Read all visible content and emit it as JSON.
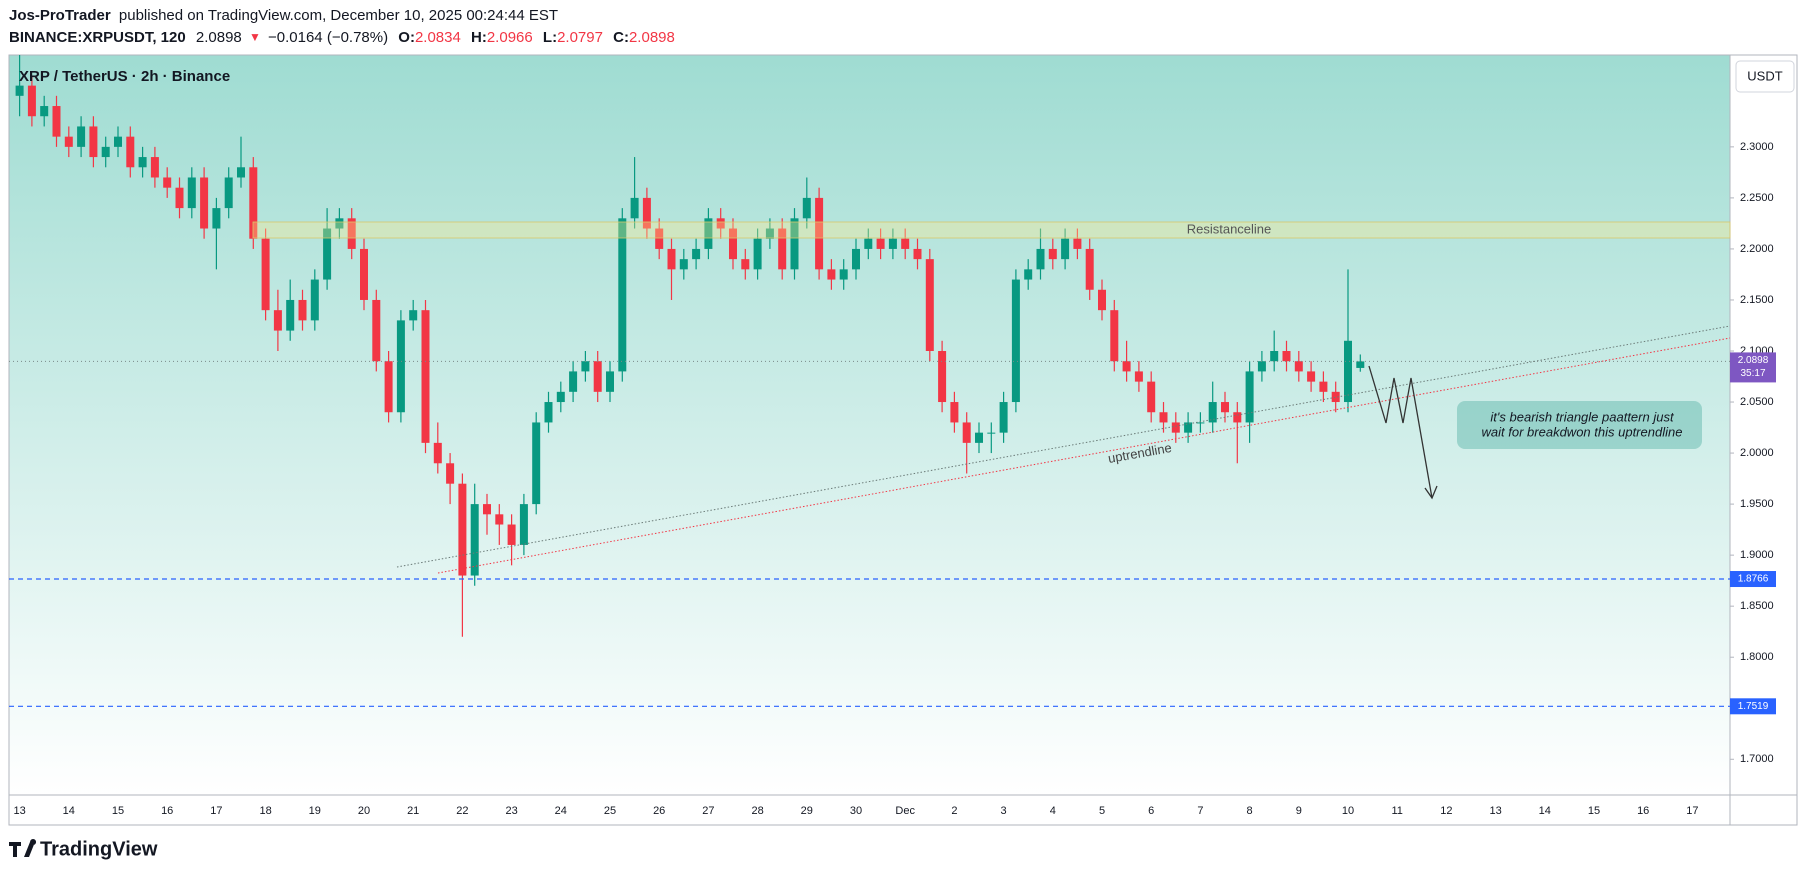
{
  "header": {
    "author": "Jos-ProTrader",
    "published": "published on TradingView.com, December 10, 2025 00:24:44 EST",
    "symbol": "BINANCE:XRPUSDT, 120",
    "change_arrow": "▼",
    "change": "−0.0164 (−0.78%)",
    "ohlc_labels": [
      "O:",
      "H:",
      "L:",
      "C:"
    ]
  },
  "chart_data": {
    "type": "candlestick",
    "title": "XRP / TetherUS · 2h · Binance",
    "currency": "USDT",
    "up_color": "#089981",
    "down_color": "#f23645",
    "categories": [
      "13",
      "14",
      "15",
      "16",
      "17",
      "18",
      "19",
      "20",
      "21",
      "22",
      "23",
      "24",
      "25",
      "26",
      "27",
      "28",
      "29",
      "30",
      "Dec",
      "2",
      "3",
      "4",
      "5",
      "6",
      "7",
      "8",
      "9",
      "10",
      "11",
      "12",
      "13",
      "14",
      "15",
      "16",
      "17"
    ],
    "ylim": [
      1.665,
      2.39
    ],
    "yticks": [
      {
        "value": 1.7,
        "label": "1.7000"
      },
      {
        "value": 1.75,
        "label": "1.7500"
      },
      {
        "value": 1.8,
        "label": "1.8000"
      },
      {
        "value": 1.85,
        "label": "1.8500"
      },
      {
        "value": 1.9,
        "label": "1.9000"
      },
      {
        "value": 1.95,
        "label": "1.9500"
      },
      {
        "value": 2.0,
        "label": "2.0000"
      },
      {
        "value": 2.05,
        "label": "2.0500"
      },
      {
        "value": 2.1,
        "label": "2.1000"
      },
      {
        "value": 2.15,
        "label": "2.1500"
      },
      {
        "value": 2.2,
        "label": "2.2000"
      },
      {
        "value": 2.25,
        "label": "2.2500"
      },
      {
        "value": 2.3,
        "label": "2.3000"
      }
    ],
    "levels": [
      {
        "value": 1.8766,
        "color": "#2962ff"
      },
      {
        "value": 1.7519,
        "color": "#2962ff"
      }
    ],
    "countdown": "35:17",
    "last_color": "#7e57c2",
    "annotations": {
      "resistance": "Resistanceline",
      "trendline": "uptrendline",
      "note": [
        "it's bearish triangle paattern just",
        "wait for breakdwon this uptrendline"
      ]
    },
    "ohlc": [
      [
        2.35,
        2.39,
        2.33,
        2.36
      ],
      [
        2.36,
        2.37,
        2.32,
        2.33
      ],
      [
        2.33,
        2.35,
        2.32,
        2.34
      ],
      [
        2.34,
        2.35,
        2.3,
        2.31
      ],
      [
        2.31,
        2.32,
        2.29,
        2.3
      ],
      [
        2.3,
        2.33,
        2.29,
        2.32
      ],
      [
        2.32,
        2.33,
        2.28,
        2.29
      ],
      [
        2.29,
        2.31,
        2.28,
        2.3
      ],
      [
        2.3,
        2.32,
        2.29,
        2.31
      ],
      [
        2.31,
        2.32,
        2.27,
        2.28
      ],
      [
        2.28,
        2.3,
        2.27,
        2.29
      ],
      [
        2.29,
        2.3,
        2.26,
        2.27
      ],
      [
        2.27,
        2.28,
        2.25,
        2.26
      ],
      [
        2.26,
        2.27,
        2.23,
        2.24
      ],
      [
        2.24,
        2.28,
        2.23,
        2.27
      ],
      [
        2.27,
        2.28,
        2.21,
        2.22
      ],
      [
        2.22,
        2.25,
        2.18,
        2.24
      ],
      [
        2.24,
        2.28,
        2.23,
        2.27
      ],
      [
        2.27,
        2.31,
        2.26,
        2.28
      ],
      [
        2.28,
        2.29,
        2.2,
        2.21
      ],
      [
        2.21,
        2.22,
        2.13,
        2.14
      ],
      [
        2.14,
        2.16,
        2.1,
        2.12
      ],
      [
        2.12,
        2.17,
        2.11,
        2.15
      ],
      [
        2.15,
        2.16,
        2.12,
        2.13
      ],
      [
        2.13,
        2.18,
        2.12,
        2.17
      ],
      [
        2.17,
        2.24,
        2.16,
        2.22
      ],
      [
        2.22,
        2.24,
        2.21,
        2.23
      ],
      [
        2.23,
        2.24,
        2.19,
        2.2
      ],
      [
        2.2,
        2.21,
        2.14,
        2.15
      ],
      [
        2.15,
        2.16,
        2.08,
        2.09
      ],
      [
        2.09,
        2.1,
        2.03,
        2.04
      ],
      [
        2.04,
        2.14,
        2.03,
        2.13
      ],
      [
        2.13,
        2.15,
        2.12,
        2.14
      ],
      [
        2.14,
        2.15,
        2.0,
        2.01
      ],
      [
        2.01,
        2.03,
        1.98,
        1.99
      ],
      [
        1.99,
        2.0,
        1.95,
        1.97
      ],
      [
        1.97,
        1.98,
        1.82,
        1.88
      ],
      [
        1.88,
        1.97,
        1.87,
        1.95
      ],
      [
        1.95,
        1.96,
        1.92,
        1.94
      ],
      [
        1.94,
        1.95,
        1.91,
        1.93
      ],
      [
        1.93,
        1.94,
        1.89,
        1.91
      ],
      [
        1.91,
        1.96,
        1.9,
        1.95
      ],
      [
        1.95,
        2.04,
        1.94,
        2.03
      ],
      [
        2.03,
        2.06,
        2.02,
        2.05
      ],
      [
        2.05,
        2.07,
        2.04,
        2.06
      ],
      [
        2.06,
        2.09,
        2.05,
        2.08
      ],
      [
        2.08,
        2.1,
        2.07,
        2.09
      ],
      [
        2.09,
        2.1,
        2.05,
        2.06
      ],
      [
        2.06,
        2.09,
        2.05,
        2.08
      ],
      [
        2.08,
        2.24,
        2.07,
        2.23
      ],
      [
        2.23,
        2.29,
        2.22,
        2.25
      ],
      [
        2.25,
        2.26,
        2.21,
        2.22
      ],
      [
        2.22,
        2.23,
        2.19,
        2.2
      ],
      [
        2.2,
        2.21,
        2.15,
        2.18
      ],
      [
        2.18,
        2.2,
        2.17,
        2.19
      ],
      [
        2.19,
        2.21,
        2.18,
        2.2
      ],
      [
        2.2,
        2.24,
        2.19,
        2.23
      ],
      [
        2.23,
        2.24,
        2.21,
        2.22
      ],
      [
        2.22,
        2.23,
        2.18,
        2.19
      ],
      [
        2.19,
        2.2,
        2.17,
        2.18
      ],
      [
        2.18,
        2.22,
        2.17,
        2.21
      ],
      [
        2.21,
        2.23,
        2.2,
        2.22
      ],
      [
        2.22,
        2.23,
        2.17,
        2.18
      ],
      [
        2.18,
        2.24,
        2.17,
        2.23
      ],
      [
        2.23,
        2.27,
        2.22,
        2.25
      ],
      [
        2.25,
        2.26,
        2.17,
        2.18
      ],
      [
        2.18,
        2.19,
        2.16,
        2.17
      ],
      [
        2.17,
        2.19,
        2.16,
        2.18
      ],
      [
        2.18,
        2.21,
        2.17,
        2.2
      ],
      [
        2.2,
        2.22,
        2.19,
        2.21
      ],
      [
        2.21,
        2.22,
        2.19,
        2.2
      ],
      [
        2.2,
        2.22,
        2.19,
        2.21
      ],
      [
        2.21,
        2.22,
        2.19,
        2.2
      ],
      [
        2.2,
        2.21,
        2.18,
        2.19
      ],
      [
        2.19,
        2.2,
        2.09,
        2.1
      ],
      [
        2.1,
        2.11,
        2.04,
        2.05
      ],
      [
        2.05,
        2.06,
        2.02,
        2.03
      ],
      [
        2.03,
        2.04,
        1.98,
        2.01
      ],
      [
        2.01,
        2.03,
        2.0,
        2.02
      ],
      [
        2.02,
        2.03,
        2.0,
        2.02
      ],
      [
        2.02,
        2.06,
        2.01,
        2.05
      ],
      [
        2.05,
        2.18,
        2.04,
        2.17
      ],
      [
        2.17,
        2.19,
        2.16,
        2.18
      ],
      [
        2.18,
        2.22,
        2.17,
        2.2
      ],
      [
        2.2,
        2.21,
        2.18,
        2.19
      ],
      [
        2.19,
        2.22,
        2.18,
        2.21
      ],
      [
        2.21,
        2.22,
        2.19,
        2.2
      ],
      [
        2.2,
        2.21,
        2.15,
        2.16
      ],
      [
        2.16,
        2.17,
        2.13,
        2.14
      ],
      [
        2.14,
        2.15,
        2.08,
        2.09
      ],
      [
        2.09,
        2.11,
        2.07,
        2.08
      ],
      [
        2.08,
        2.09,
        2.06,
        2.07
      ],
      [
        2.07,
        2.08,
        2.03,
        2.04
      ],
      [
        2.04,
        2.05,
        2.02,
        2.03
      ],
      [
        2.03,
        2.04,
        2.01,
        2.02
      ],
      [
        2.02,
        2.04,
        2.01,
        2.03
      ],
      [
        2.03,
        2.04,
        2.02,
        2.03
      ],
      [
        2.03,
        2.07,
        2.02,
        2.05
      ],
      [
        2.05,
        2.06,
        2.03,
        2.04
      ],
      [
        2.04,
        2.05,
        1.99,
        2.03
      ],
      [
        2.03,
        2.09,
        2.01,
        2.08
      ],
      [
        2.08,
        2.1,
        2.07,
        2.09
      ],
      [
        2.09,
        2.12,
        2.08,
        2.1
      ],
      [
        2.1,
        2.11,
        2.08,
        2.09
      ],
      [
        2.09,
        2.1,
        2.07,
        2.08
      ],
      [
        2.08,
        2.09,
        2.06,
        2.07
      ],
      [
        2.07,
        2.08,
        2.05,
        2.06
      ],
      [
        2.06,
        2.07,
        2.04,
        2.05
      ],
      [
        2.05,
        2.18,
        2.04,
        2.11
      ],
      [
        2.0834,
        2.0966,
        2.0797,
        2.0898
      ]
    ]
  },
  "footer": {
    "logo": "TradingView"
  }
}
